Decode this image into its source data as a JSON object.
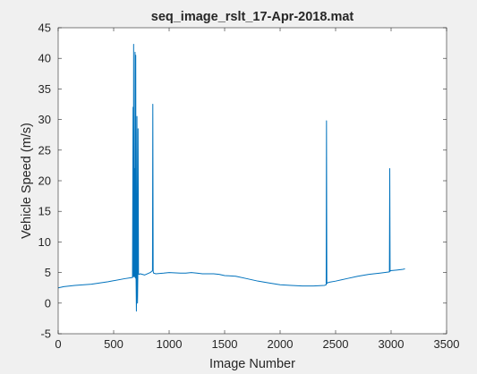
{
  "chart_data": {
    "type": "line",
    "title": "seq_image_rslt_17-Apr-2018.mat",
    "xlabel": "Image Number",
    "ylabel": "Vehicle Speed (m/s)",
    "xlim": [
      0,
      3500
    ],
    "ylim": [
      -5,
      45
    ],
    "x_ticks": [
      0,
      500,
      1000,
      1500,
      2000,
      2500,
      3000,
      3500
    ],
    "y_ticks": [
      -5,
      0,
      5,
      10,
      15,
      20,
      25,
      30,
      35,
      40,
      45
    ],
    "x_tick_labels": [
      "0",
      "500",
      "1000",
      "1500",
      "2000",
      "2500",
      "3000",
      "3500"
    ],
    "y_tick_labels": [
      "-5",
      "0",
      "5",
      "10",
      "15",
      "20",
      "25",
      "30",
      "35",
      "40",
      "45"
    ],
    "grid": false,
    "legend": "none",
    "series": [
      {
        "color": "#0072bd",
        "x": [
          0,
          50,
          150,
          300,
          450,
          600,
          670,
          675,
          678,
          680,
          683,
          686,
          690,
          693,
          696,
          699,
          702,
          705,
          708,
          710,
          712,
          715,
          718,
          720,
          724,
          728,
          740,
          780,
          830,
          850,
          853,
          856,
          860,
          880,
          950,
          1000,
          1100,
          1150,
          1200,
          1250,
          1300,
          1400,
          1450,
          1500,
          1600,
          1700,
          1800,
          1900,
          2000,
          2100,
          2200,
          2300,
          2400,
          2415,
          2418,
          2421,
          2425,
          2440,
          2500,
          2600,
          2700,
          2800,
          2900,
          2985,
          2988,
          2991,
          2995,
          3050,
          3100,
          3125
        ],
        "y": [
          2.5,
          2.7,
          2.9,
          3.1,
          3.5,
          4.0,
          4.2,
          32.0,
          4.3,
          42.3,
          4.4,
          22.0,
          4.3,
          41.0,
          4.1,
          40.5,
          4.0,
          -1.3,
          4.3,
          30.5,
          4.4,
          0.0,
          4.6,
          28.5,
          4.8,
          4.7,
          4.8,
          4.6,
          5.0,
          5.3,
          32.5,
          5.2,
          4.9,
          4.8,
          4.9,
          5.0,
          4.9,
          4.9,
          5.0,
          4.9,
          4.8,
          4.8,
          4.7,
          4.5,
          4.4,
          4.0,
          3.6,
          3.3,
          3.0,
          2.9,
          2.8,
          2.8,
          2.9,
          3.0,
          29.8,
          3.2,
          3.3,
          3.4,
          3.6,
          4.0,
          4.4,
          4.7,
          4.9,
          5.1,
          22.0,
          5.2,
          5.3,
          5.4,
          5.5,
          5.6
        ]
      }
    ]
  }
}
